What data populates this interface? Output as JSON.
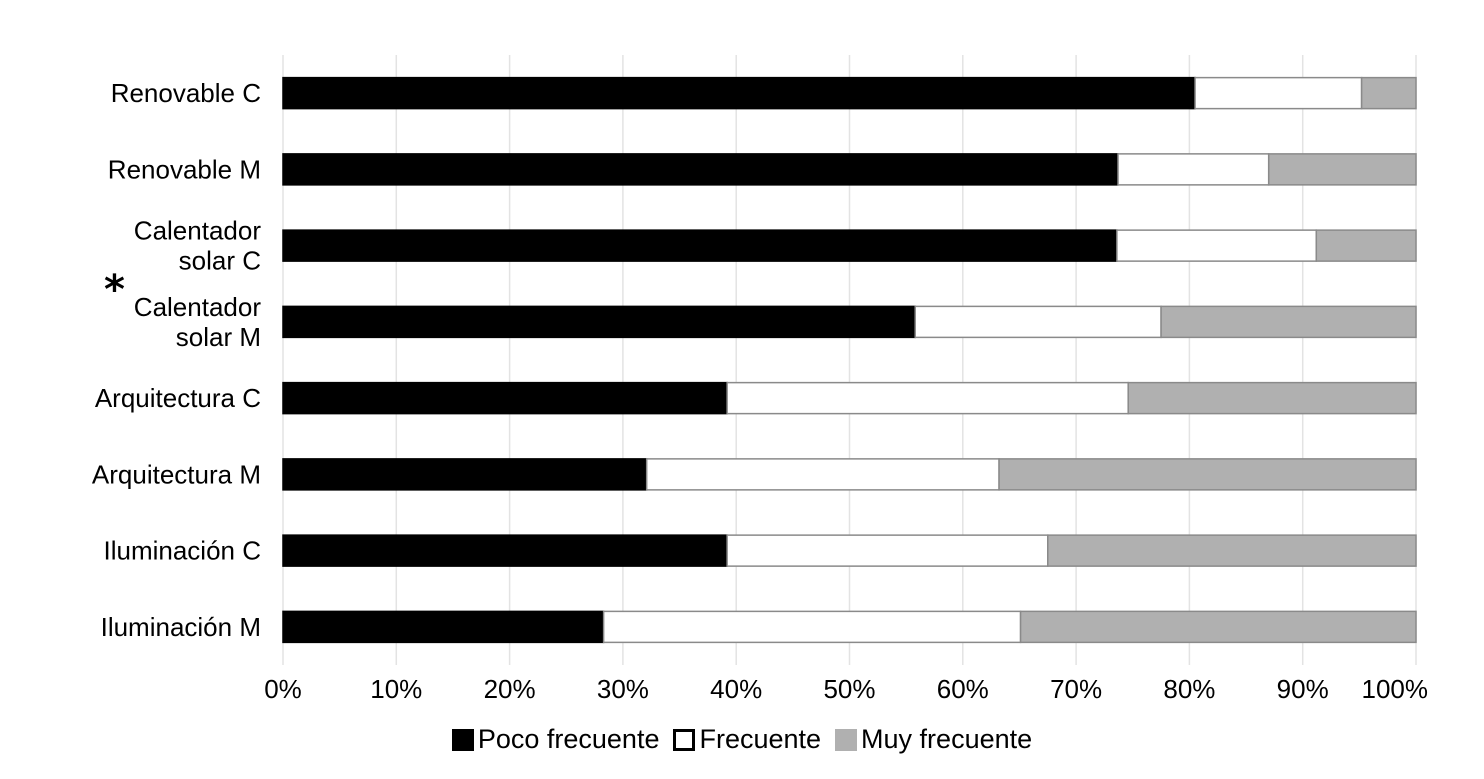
{
  "chart_data": {
    "type": "bar",
    "orientation": "horizontal",
    "stacked": true,
    "categories": [
      [
        "Renovable C"
      ],
      [
        "Renovable M"
      ],
      [
        "Calentador",
        "solar C"
      ],
      [
        "Calentador",
        "solar M"
      ],
      [
        "Arquitectura C"
      ],
      [
        "Arquitectura M"
      ],
      [
        "Iluminación C"
      ],
      [
        "Iluminación M"
      ]
    ],
    "series": [
      {
        "name": "Poco frecuente",
        "color": "#000000",
        "values": [
          80.5,
          73.7,
          73.6,
          55.8,
          39.2,
          32.1,
          39.2,
          28.3
        ]
      },
      {
        "name": "Frecuente",
        "color": "#ffffff",
        "values": [
          14.7,
          13.3,
          17.6,
          21.7,
          35.4,
          31.1,
          28.3,
          36.8
        ]
      },
      {
        "name": "Muy frecuente",
        "color": "#b0b0b0",
        "values": [
          4.8,
          13.0,
          8.8,
          22.5,
          25.4,
          36.8,
          32.5,
          34.9
        ]
      }
    ],
    "xticks": [
      "0%",
      "10%",
      "20%",
      "30%",
      "40%",
      "50%",
      "60%",
      "70%",
      "80%",
      "90%",
      "100%"
    ],
    "xlim": [
      0,
      100
    ],
    "grid": true,
    "legend_position": "bottom",
    "annotation": "*",
    "title": "",
    "xlabel": "",
    "ylabel": ""
  }
}
